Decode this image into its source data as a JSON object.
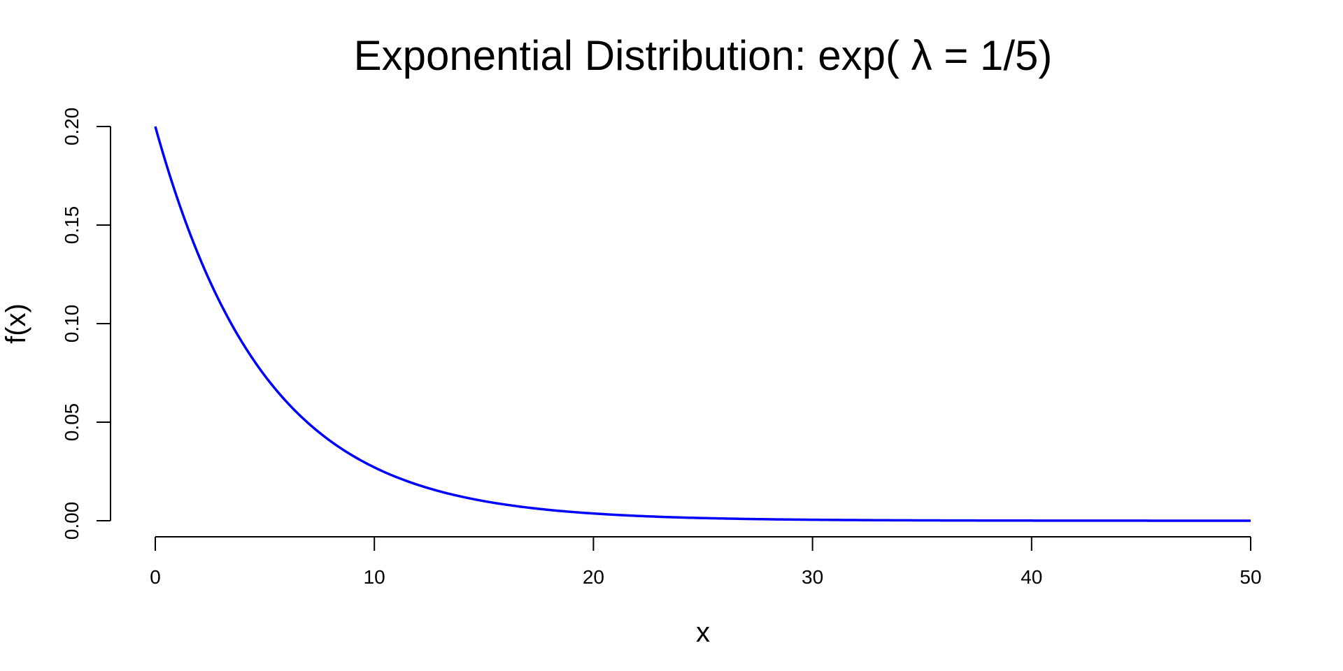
{
  "chart_data": {
    "type": "line",
    "title": "Exponential Distribution: exp( λ = 1/5)",
    "xlabel": "x",
    "ylabel": "f(x)",
    "rate": 0.2,
    "xlim": [
      0,
      50
    ],
    "ylim": [
      0,
      0.2
    ],
    "grid": false,
    "x_ticks": [
      0,
      10,
      20,
      30,
      40,
      50
    ],
    "y_ticks": [
      0.0,
      0.05,
      0.1,
      0.15,
      0.2
    ],
    "x_tick_labels": [
      "0",
      "10",
      "20",
      "30",
      "40",
      "50"
    ],
    "y_tick_labels": [
      "0.00",
      "0.05",
      "0.10",
      "0.15",
      "0.20"
    ],
    "series": [
      {
        "color": "#0000ff",
        "x": [
          0,
          2,
          4,
          6,
          8,
          10,
          12,
          14,
          16,
          18,
          20,
          22,
          24,
          26,
          28,
          30,
          32,
          34,
          36,
          38,
          40,
          42,
          44,
          46,
          48,
          50
        ],
        "y": [
          0.2,
          0.13406,
          0.08987,
          0.06024,
          0.04038,
          0.02707,
          0.01814,
          0.01216,
          0.00815,
          0.00547,
          0.00366,
          0.00246,
          0.00165,
          0.0011,
          0.00074,
          0.0005,
          0.00033,
          0.00022,
          0.00015,
          0.0001,
          7e-05,
          4e-05,
          3e-05,
          2e-05,
          1e-05,
          1e-05
        ]
      }
    ]
  }
}
